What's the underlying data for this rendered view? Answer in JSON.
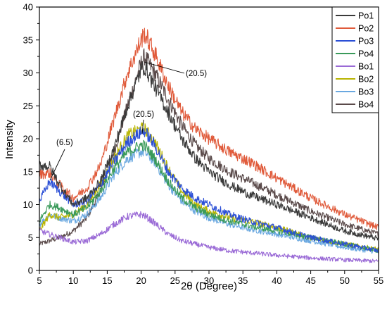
{
  "chart_data": {
    "type": "line",
    "xlabel": "2θ (Degree)",
    "ylabel": "Intensity",
    "xlim": [
      5,
      55
    ],
    "ylim": [
      0,
      40
    ],
    "xticks": [
      5,
      10,
      15,
      20,
      25,
      30,
      35,
      40,
      45,
      50,
      55
    ],
    "yticks": [
      0,
      5,
      10,
      15,
      20,
      25,
      30,
      35,
      40
    ],
    "grid": false,
    "legend_position": "top-right",
    "x": [
      5,
      6.5,
      8,
      10,
      12,
      14,
      16,
      18,
      20,
      20.5,
      22,
      24,
      26,
      28,
      30,
      33,
      36,
      40,
      45,
      50,
      55
    ],
    "series": [
      {
        "name": "Po1",
        "color": "#3a3a3a",
        "values": [
          16.0,
          15.8,
          13.0,
          10.0,
          11.0,
          13.5,
          18.5,
          25.0,
          30.5,
          31.0,
          28.0,
          24.0,
          20.0,
          17.0,
          15.0,
          13.0,
          11.5,
          10.0,
          8.0,
          6.0,
          4.8
        ]
      },
      {
        "name": "Po2",
        "color": "#e05a3a",
        "values": [
          14.6,
          14.8,
          13.0,
          11.0,
          12.5,
          16.0,
          23.0,
          30.0,
          35.0,
          36.0,
          33.0,
          28.0,
          24.0,
          21.5,
          20.0,
          18.0,
          16.5,
          14.0,
          11.0,
          8.5,
          6.5
        ]
      },
      {
        "name": "Po3",
        "color": "#2b4fd6",
        "values": [
          10.5,
          13.5,
          12.0,
          10.0,
          10.5,
          13.0,
          16.5,
          19.5,
          21.0,
          21.2,
          19.0,
          15.0,
          12.5,
          11.0,
          10.0,
          8.5,
          7.5,
          6.5,
          5.0,
          4.0,
          3.0
        ]
      },
      {
        "name": "Po4",
        "color": "#3a9a5a",
        "values": [
          7.5,
          10.0,
          9.5,
          8.5,
          9.5,
          12.0,
          15.5,
          18.0,
          19.0,
          19.0,
          17.0,
          13.5,
          11.0,
          9.5,
          8.5,
          7.5,
          6.8,
          6.0,
          5.0,
          4.0,
          3.0
        ]
      },
      {
        "name": "Bo1",
        "color": "#9a6ad6",
        "values": [
          6.0,
          5.5,
          5.0,
          4.3,
          4.5,
          5.5,
          7.0,
          8.2,
          8.5,
          8.3,
          7.2,
          5.5,
          4.5,
          4.0,
          3.5,
          3.0,
          2.7,
          2.3,
          1.9,
          1.6,
          1.4
        ]
      },
      {
        "name": "Bo2",
        "color": "#b8b400",
        "values": [
          6.0,
          8.5,
          8.0,
          8.5,
          10.0,
          13.0,
          17.0,
          20.5,
          21.5,
          21.5,
          19.5,
          15.5,
          12.0,
          10.0,
          9.0,
          8.0,
          7.5,
          6.5,
          5.0,
          4.0,
          3.2
        ]
      },
      {
        "name": "Bo3",
        "color": "#6aa8e0",
        "values": [
          7.0,
          8.5,
          8.0,
          7.5,
          8.5,
          11.0,
          14.5,
          17.0,
          18.0,
          18.0,
          16.5,
          13.0,
          10.5,
          9.0,
          8.0,
          7.0,
          6.3,
          5.5,
          4.5,
          3.5,
          2.8
        ]
      },
      {
        "name": "Bo4",
        "color": "#5a4a4a",
        "values": [
          4.0,
          4.5,
          5.0,
          6.0,
          8.0,
          12.0,
          18.0,
          25.0,
          31.5,
          32.5,
          30.0,
          26.0,
          22.0,
          19.0,
          17.0,
          15.0,
          13.5,
          11.5,
          9.0,
          7.0,
          5.5
        ]
      }
    ],
    "annotations": [
      {
        "text": "(6.5)",
        "x": 6.5
      },
      {
        "text": "(20.5)",
        "x": 20.5
      },
      {
        "text": "(20.5)",
        "x": 20.5
      }
    ]
  }
}
